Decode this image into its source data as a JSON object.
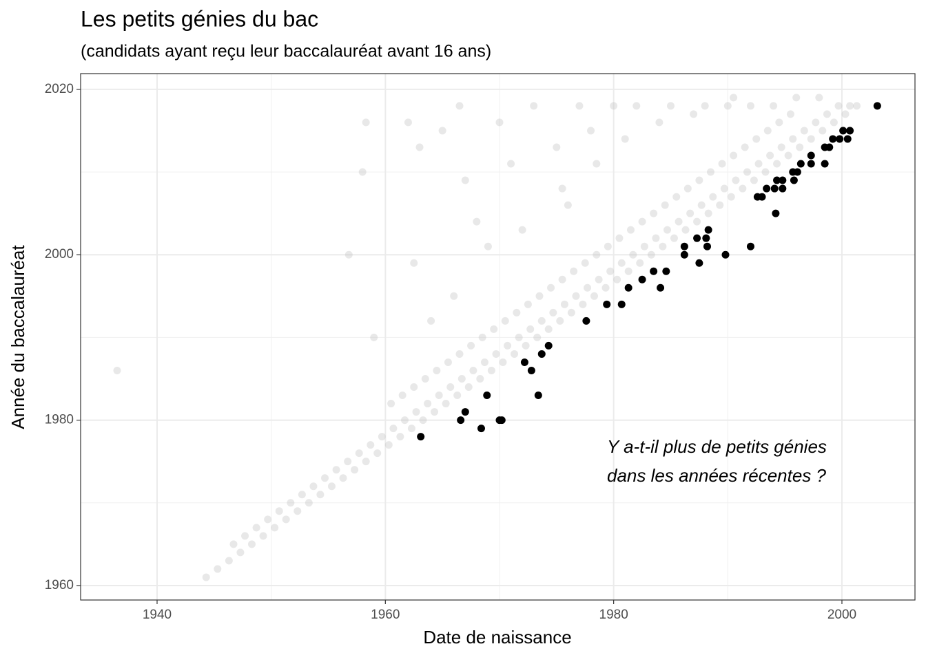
{
  "chart_data": {
    "type": "scatter",
    "title": "Les petits génies du bac",
    "subtitle": "(candidats ayant reçu leur baccalauréat avant 16 ans)",
    "x_label": "Date de naissance",
    "y_label": "Année du baccalauréat",
    "annotation": [
      "Y a-t-il plus de petits génies",
      "dans les années récentes ?"
    ],
    "xlim": [
      1933.3,
      2006.4
    ],
    "ylim": [
      1958.25,
      2021.9
    ],
    "xticks": [
      1940,
      1960,
      1980,
      2000
    ],
    "yticks": [
      1960,
      1980,
      2000,
      2020
    ],
    "grid": true,
    "series": [
      {
        "color": "#bebebe",
        "opacity": 0.35,
        "x": [
          1944.3,
          1945.3,
          1946.3,
          1947.3,
          1948.3,
          1949.3,
          1950.3,
          1951.3,
          1952.3,
          1953.3,
          1954.3,
          1955.3,
          1956.3,
          1957.3,
          1958.3,
          1959.3,
          1960.3,
          1961.3,
          1962.3,
          1963.3,
          1964.3,
          1965.3,
          1966.3,
          1967.3,
          1968.3,
          1969.3,
          1970.3,
          1971.3,
          1972.3,
          1973.3,
          1974.3,
          1975.3,
          1976.3,
          1977.3,
          1978.3,
          1979.3,
          1980.3,
          1981.3,
          1982.3,
          1983.3,
          1984.3,
          1985.3,
          1986.3,
          1987.3,
          1988.3,
          1989.3,
          1990.3,
          1991.3,
          1992.3,
          1993.3,
          1994.3,
          1995.3,
          1996.3,
          1997.3,
          1998.3,
          1999.3,
          2000.3,
          2001.3,
          1946.7,
          1947.7,
          1948.7,
          1949.7,
          1950.7,
          1951.7,
          1952.7,
          1953.7,
          1954.7,
          1955.7,
          1956.7,
          1957.7,
          1958.7,
          1959.7,
          1960.7,
          1961.7,
          1962.7,
          1963.7,
          1964.7,
          1965.7,
          1966.7,
          1967.7,
          1968.7,
          1969.7,
          1970.7,
          1971.7,
          1972.7,
          1973.7,
          1974.7,
          1975.7,
          1976.7,
          1977.7,
          1978.7,
          1979.7,
          1980.7,
          1981.7,
          1982.7,
          1983.7,
          1984.7,
          1985.7,
          1986.7,
          1987.7,
          1988.7,
          1989.7,
          1990.7,
          1991.7,
          1992.7,
          1993.7,
          1994.7,
          1995.7,
          1996.7,
          1997.7,
          1998.7,
          1999.7,
          2000.7,
          1960.5,
          1961.5,
          1962.5,
          1963.5,
          1964.5,
          1965.5,
          1966.5,
          1967.5,
          1968.5,
          1969.5,
          1970.5,
          1971.5,
          1972.5,
          1973.5,
          1974.5,
          1975.5,
          1976.5,
          1977.5,
          1978.5,
          1979.5,
          1980.5,
          1981.5,
          1982.5,
          1983.5,
          1984.5,
          1985.5,
          1986.5,
          1987.5,
          1988.5,
          1989.5,
          1990.5,
          1991.5,
          1992.5,
          1993.5,
          1994.5,
          1995.5,
          1936.5,
          1956.8,
          1958.3,
          1958,
          1959,
          1962,
          1963,
          1965,
          1966.5,
          1967,
          1968,
          1970,
          1971,
          1973,
          1975,
          1976,
          1977,
          1978,
          1980,
          1982,
          1985,
          1988,
          1990,
          1992,
          1994,
          1996,
          1998,
          1962.5,
          1964,
          1966,
          1969,
          1972,
          1975.5,
          1978.5,
          1981,
          1984,
          1987,
          1990.5
        ],
        "values": [
          1961,
          1962,
          1963,
          1964,
          1965,
          1966,
          1967,
          1968,
          1969,
          1970,
          1971,
          1972,
          1973,
          1974,
          1975,
          1976,
          1977,
          1978,
          1979,
          1980,
          1981,
          1982,
          1983,
          1984,
          1985,
          1986,
          1987,
          1988,
          1989,
          1990,
          1991,
          1992,
          1993,
          1994,
          1995,
          1996,
          1997,
          1998,
          1999,
          2000,
          2001,
          2002,
          2003,
          2004,
          2005,
          2006,
          2007,
          2008,
          2009,
          2010,
          2011,
          2012,
          2013,
          2014,
          2015,
          2016,
          2017,
          2018,
          1965,
          1966,
          1967,
          1968,
          1969,
          1970,
          1971,
          1972,
          1973,
          1974,
          1975,
          1976,
          1977,
          1978,
          1979,
          1980,
          1981,
          1982,
          1983,
          1984,
          1985,
          1986,
          1987,
          1988,
          1989,
          1990,
          1991,
          1992,
          1993,
          1994,
          1995,
          1996,
          1997,
          1998,
          1999,
          2000,
          2001,
          2002,
          2003,
          2004,
          2005,
          2006,
          2007,
          2008,
          2009,
          2010,
          2011,
          2012,
          2013,
          2014,
          2015,
          2016,
          2017,
          2018,
          2018,
          1982,
          1983,
          1984,
          1985,
          1986,
          1987,
          1988,
          1989,
          1990,
          1991,
          1992,
          1993,
          1994,
          1995,
          1996,
          1997,
          1998,
          1999,
          2000,
          2001,
          2002,
          2003,
          2004,
          2005,
          2006,
          2007,
          2008,
          2009,
          2010,
          2011,
          2012,
          2013,
          2014,
          2015,
          2016,
          2017,
          1986,
          2000,
          2016,
          2010,
          1990,
          2016,
          2013,
          2015,
          2018,
          2009,
          2004,
          2016,
          2011,
          2018,
          2013,
          2006,
          2018,
          2015,
          2018,
          2018,
          2018,
          2018,
          2018,
          2018,
          2018,
          2019,
          2019,
          1999,
          1992,
          1995,
          2001,
          2003,
          2008,
          2011,
          2014,
          2016,
          2017,
          2019
        ]
      },
      {
        "color": "#000000",
        "opacity": 1,
        "x": [
          2003.1,
          2000.7,
          2000.1,
          2000.5,
          1999.8,
          1999.2,
          1998.9,
          1998.5,
          1997.3,
          1996.4,
          1997.3,
          1998.5,
          1995.7,
          1996.1,
          1995.8,
          1994.3,
          1994.8,
          1993.4,
          1994.1,
          1994.8,
          1992.6,
          1993.0,
          1994.2,
          1992.0,
          1988.3,
          1987.3,
          1988.1,
          1988.2,
          1986.2,
          1986.2,
          1989.8,
          1987.5,
          1984.6,
          1983.5,
          1982.5,
          1984.1,
          1981.3,
          1979.4,
          1980.7,
          1977.6,
          1974.3,
          1973.7,
          1972.2,
          1972.8,
          1968.9,
          1973.4,
          1967.0,
          1966.6,
          1970.0,
          1970.2,
          1968.4,
          1963.1
        ],
        "values": [
          2018,
          2015,
          2015,
          2014,
          2014,
          2014,
          2013,
          2013,
          2012,
          2011,
          2011,
          2011,
          2010,
          2010,
          2009,
          2009,
          2009,
          2008,
          2008,
          2008,
          2007,
          2007,
          2005,
          2001,
          2003,
          2002,
          2002,
          2001,
          2001,
          2000,
          2000,
          1999,
          1998,
          1998,
          1997,
          1996,
          1996,
          1994,
          1994,
          1992,
          1989,
          1988,
          1987,
          1986,
          1983,
          1983,
          1981,
          1980,
          1980,
          1980,
          1979,
          1978
        ]
      }
    ]
  }
}
